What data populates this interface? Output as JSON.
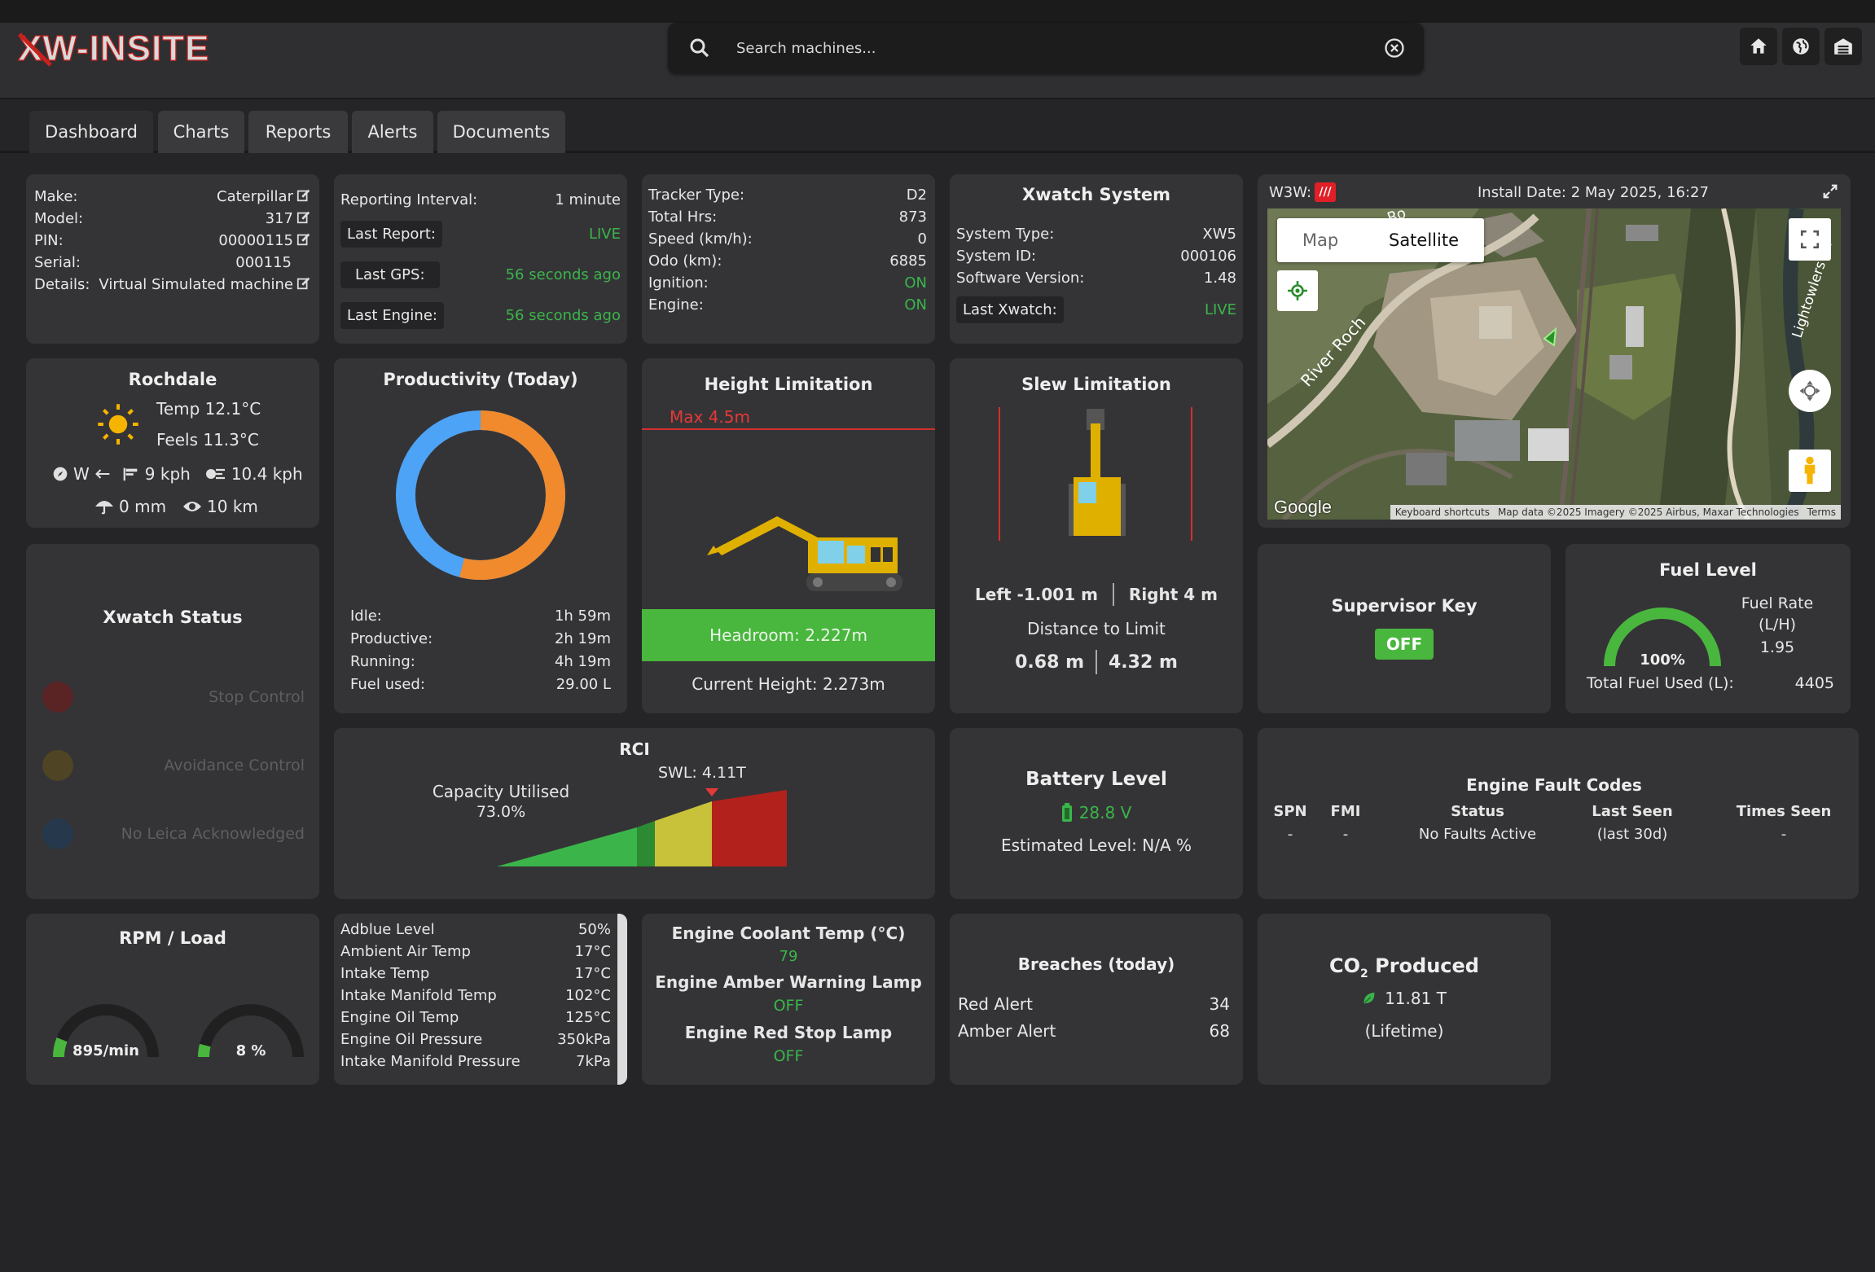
{
  "header": {
    "logo_text": "XW-INSITE",
    "search_placeholder": "Search machines..."
  },
  "tabs": [
    {
      "label": "Dashboard"
    },
    {
      "label": "Charts"
    },
    {
      "label": "Reports"
    },
    {
      "label": "Alerts"
    },
    {
      "label": "Documents"
    }
  ],
  "machine": {
    "make_label": "Make:",
    "make": "Caterpillar",
    "model_label": "Model:",
    "model": "317",
    "pin_label": "PIN:",
    "pin": "00000115",
    "serial_label": "Serial:",
    "serial": "000115",
    "details_label": "Details:",
    "details": "Virtual Simulated machine"
  },
  "reporting": {
    "interval_label": "Reporting Interval:",
    "interval": "1 minute",
    "last_report_label": "Last Report:",
    "last_report": "LIVE",
    "last_gps_label": "Last GPS:",
    "last_gps": "56 seconds ago",
    "last_engine_label": "Last Engine:",
    "last_engine": "56 seconds ago"
  },
  "tracker": {
    "type_label": "Tracker Type:",
    "type": "D2",
    "hrs_label": "Total Hrs:",
    "hrs": "873",
    "speed_label": "Speed (km/h):",
    "speed": "0",
    "odo_label": "Odo (km):",
    "odo": "6885",
    "ignition_label": "Ignition:",
    "ignition": "ON",
    "engine_label": "Engine:",
    "engine": "ON"
  },
  "xwatch_system": {
    "title": "Xwatch System",
    "type_label": "System Type:",
    "type": "XW5",
    "id_label": "System ID:",
    "id": "000106",
    "software_label": "Software Version:",
    "software": "1.48",
    "last_label": "Last Xwatch:",
    "last": "LIVE"
  },
  "map": {
    "w3w_label": "W3W:",
    "w3w_badge": "///",
    "install_date": "Install Date: 2 May 2025, 16:27",
    "map_btn": "Map",
    "satellite_btn": "Satellite",
    "google": "Google",
    "keyboard": "Keyboard shortcuts",
    "attribution": "Map data ©2025 Imagery ©2025 Airbus, Maxar Technologies",
    "terms": "Terms",
    "road1": "River Roch",
    "road2": "Lightowlers Ln",
    "road3": "Ro"
  },
  "weather": {
    "location": "Rochdale",
    "temp": "Temp 12.1°C",
    "feels": "Feels 11.3°C",
    "wind_dir": "W",
    "wind_speed": "9 kph",
    "gust": "10.4 kph",
    "rain": "0 mm",
    "visibility": "10 km"
  },
  "productivity": {
    "title": "Productivity (Today)",
    "idle_label": "Idle:",
    "idle": "1h 59m",
    "productive_label": "Productive:",
    "productive": "2h 19m",
    "running_label": "Running:",
    "running": "4h 19m",
    "fuel_label": "Fuel used:",
    "fuel": "29.00 L",
    "idle_fraction": 0.46,
    "colors": {
      "idle": "#4da3f5",
      "productive": "#f08a2c"
    }
  },
  "height": {
    "title": "Height Limitation",
    "max": "Max 4.5m",
    "headroom": "Headroom: 2.227m",
    "current": "Current Height: 2.273m"
  },
  "slew": {
    "title": "Slew Limitation",
    "left": "Left -1.001 m",
    "right": "Right 4 m",
    "dist_label": "Distance to Limit",
    "dist_left": "0.68 m",
    "dist_right": "4.32 m"
  },
  "supervisor": {
    "title": "Supervisor Key",
    "state": "OFF"
  },
  "fuel": {
    "title": "Fuel Level",
    "percent": "100%",
    "level_fraction": 1.0,
    "rate_label": "Fuel Rate (L/H)",
    "rate": "1.95",
    "total_label": "Total Fuel Used (L):",
    "total": "4405"
  },
  "xwatch_status": {
    "title": "Xwatch Status",
    "items": [
      {
        "label": "Stop Control",
        "color": "#5a2324"
      },
      {
        "label": "Avoidance Control",
        "color": "#4f4424"
      },
      {
        "label": "No Leica Acknowledged",
        "color": "#26384b"
      }
    ]
  },
  "rci": {
    "title": "RCI",
    "capacity_label": "Capacity Utilised",
    "capacity": "73.0%",
    "swl": "SWL: 4.11T"
  },
  "battery": {
    "title": "Battery Level",
    "voltage": "28.8 V",
    "estimated": "Estimated Level: N/A %"
  },
  "faults": {
    "title": "Engine Fault Codes",
    "headers": [
      "SPN",
      "FMI",
      "Status",
      "Last Seen\n(last 30d)",
      "Times Seen"
    ],
    "header_main": [
      "SPN",
      "FMI",
      "Status",
      "Last Seen",
      "Times Seen"
    ],
    "header_sub": "(last 30d)",
    "row": [
      "-",
      "-",
      "No Faults Active",
      "-"
    ]
  },
  "rpm": {
    "title": "RPM / Load",
    "rpm": "895/min",
    "load": "8 %",
    "rpm_fraction": 0.12,
    "load_fraction": 0.08
  },
  "engine_params": [
    {
      "label": "Adblue Level",
      "value": "50%"
    },
    {
      "label": "Ambient Air Temp",
      "value": "17°C"
    },
    {
      "label": "Intake Temp",
      "value": "17°C"
    },
    {
      "label": "Intake Manifold Temp",
      "value": "102°C"
    },
    {
      "label": "Engine Oil Temp",
      "value": "125°C"
    },
    {
      "label": "Engine Oil Pressure",
      "value": "350kPa"
    },
    {
      "label": "Intake Manifold Pressure",
      "value": "7kPa"
    }
  ],
  "coolant": {
    "title": "Engine Coolant Temp (°C)",
    "value": "79",
    "amber_label": "Engine Amber Warning Lamp",
    "amber": "OFF",
    "red_label": "Engine Red Stop Lamp",
    "red": "OFF"
  },
  "breaches": {
    "title": "Breaches (today)",
    "red_label": "Red Alert",
    "red": "34",
    "amber_label": "Amber Alert",
    "amber": "68"
  },
  "co2": {
    "title_main": "CO",
    "title_sub": "2",
    "title_rest": " Produced",
    "value": "11.81 T",
    "period": "(Lifetime)"
  }
}
